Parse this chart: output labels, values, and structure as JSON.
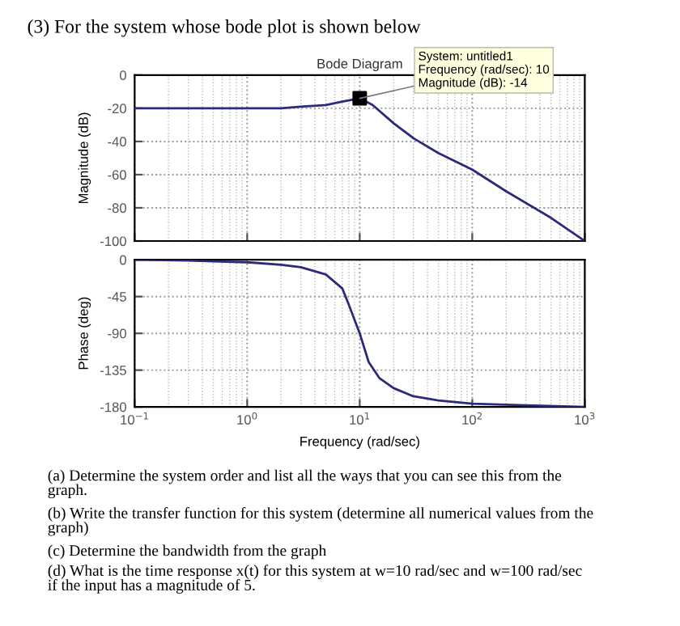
{
  "chart_data": [
    {
      "type": "line",
      "title": "Bode Diagram",
      "ylabel": "Magnitude (dB)",
      "annotations": [
        "(3) For the system whose bode plot is shown below",
        {
          "text": "System: untitled1\nFrequency (rad/sec): 10\nMagnitude (dB): -14",
          "x": 10,
          "y": -14
        }
      ],
      "series": [
        {
          "color": "#2b2b7a",
          "marker": "none",
          "x": [
            0.1,
            1,
            2,
            3,
            5,
            7,
            10,
            13,
            20,
            30,
            50,
            100,
            200,
            500,
            1000
          ],
          "values": [
            -20,
            -20,
            -20,
            -19,
            -18,
            -16,
            -14,
            -18,
            -29,
            -38,
            -47,
            -57,
            -70,
            -86,
            -100
          ]
        },
        {
          "type": "scatter",
          "color": "#000000",
          "marker": "square",
          "x": [
            10
          ],
          "values": [
            -14
          ]
        }
      ],
      "xlim": [
        0.1,
        1000
      ],
      "ylim": [
        -100,
        0
      ],
      "yticks": [
        0,
        -20,
        -40,
        -60,
        -80,
        -100
      ],
      "log": "x",
      "grid": true,
      "tick_labels": "y",
      "xticks": [
        {
          "value": 0.1,
          "label": null
        },
        {
          "value": 1,
          "label": null
        },
        {
          "value": 10,
          "label": null
        },
        {
          "value": 100,
          "label": null
        },
        {
          "value": 1000,
          "label": null
        }
      ]
    },
    {
      "type": "line",
      "xlabel": "Frequency (rad/sec)",
      "ylabel": "Phase (deg)",
      "annotations": [
        "(a) Determine the system order and list all the ways that you can see this from the\ngraph.",
        "(b) Write the transfer function for this system (determine all numerical values from the\ngraph)",
        "(c) Determine the bandwidth from the graph",
        "(d) What is the time response x(t) for this system at w=10 rad/sec and w=100 rad/sec\nif the input has a magnitude of 5."
      ],
      "series": [
        {
          "color": "#2b2b7a",
          "x": [
            0.1,
            0.3,
            1,
            2,
            3,
            5,
            7,
            8,
            10,
            12,
            15,
            20,
            30,
            50,
            100,
            300,
            1000
          ],
          "values": [
            0,
            -1,
            -3,
            -6,
            -9,
            -18,
            -35,
            -55,
            -90,
            -125,
            -145,
            -157,
            -167,
            -172,
            -176,
            -178,
            -180
          ]
        }
      ],
      "xlim": [
        0.1,
        1000
      ],
      "ylim": [
        -180,
        0
      ],
      "yticks": [
        0,
        -45,
        -90,
        -135,
        -180
      ],
      "log": "x",
      "grid": true,
      "xticks": [
        {
          "value": 0.1,
          "label": "10$^{−1}$"
        },
        {
          "value": 1,
          "label": "10$^{0}$"
        },
        {
          "value": 10,
          "label": "10$^{1}$"
        },
        {
          "value": 100,
          "label": "10$^{2}$"
        },
        {
          "value": 1000,
          "label": "10$^{3}$"
        }
      ]
    }
  ]
}
